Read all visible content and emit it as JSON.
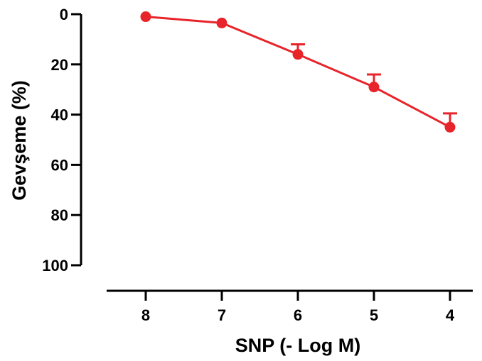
{
  "chart_data": {
    "type": "line",
    "xlabel": "SNP (- Log M)",
    "ylabel": "Gevşeme (%)",
    "x_ticks": [
      "8",
      "7",
      "6",
      "5",
      "4"
    ],
    "y_ticks": [
      "0",
      "20",
      "40",
      "60",
      "80",
      "100"
    ],
    "xlim": [
      8.9,
      3.6
    ],
    "ylim": [
      0,
      100
    ],
    "y_inverted": true,
    "grid": false,
    "series": [
      {
        "color": "#e8242b",
        "x": [
          8,
          7,
          6,
          5,
          4
        ],
        "y": [
          1,
          3.5,
          16,
          29,
          45
        ],
        "error_upper": [
          0,
          0,
          4,
          5,
          5.5
        ]
      }
    ]
  }
}
